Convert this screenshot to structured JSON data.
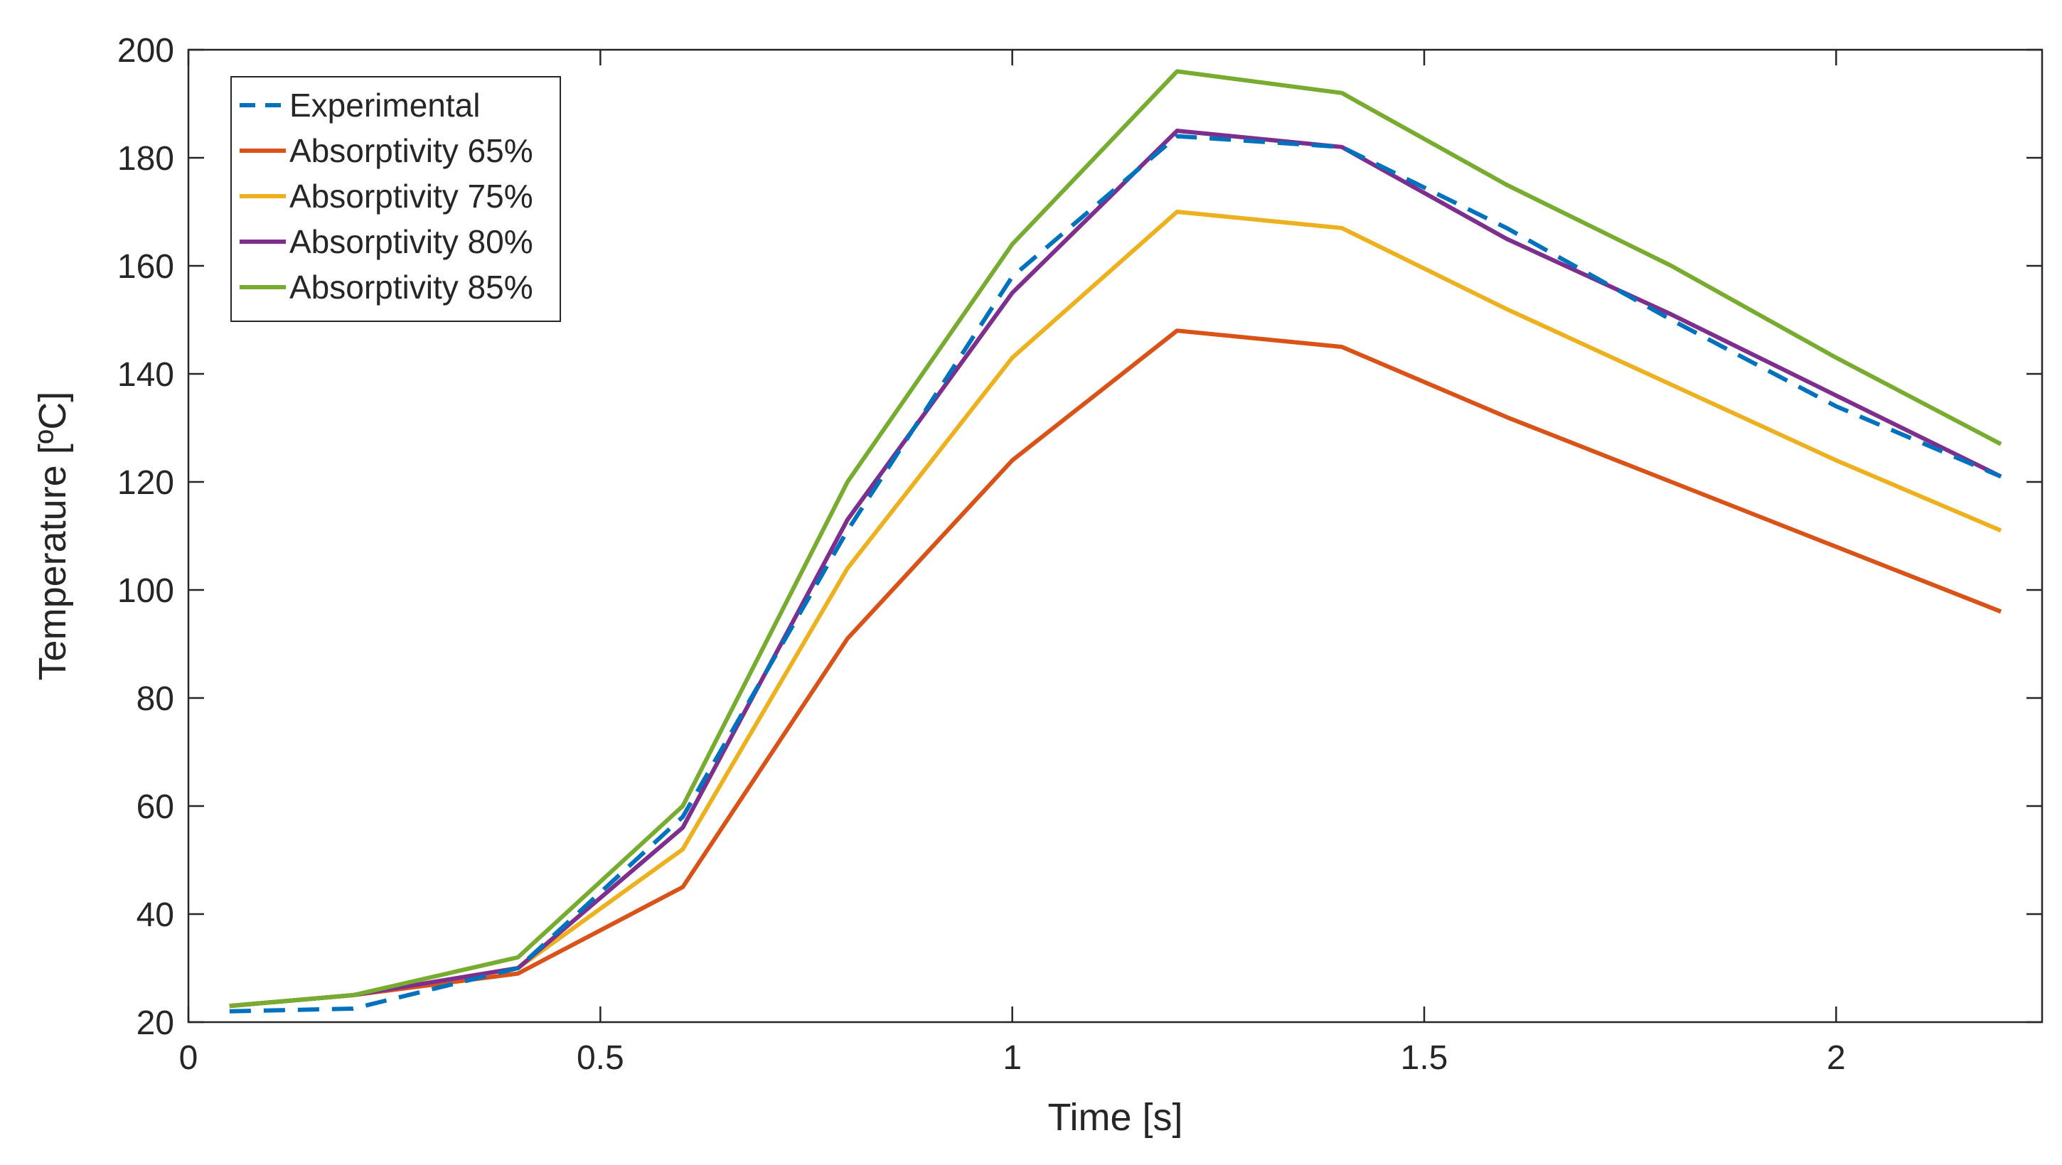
{
  "chart_data": {
    "type": "line",
    "title": "",
    "xlabel": "Time [s]",
    "ylabel": "Temperature [ºC]",
    "xlim": [
      0,
      2.25
    ],
    "ylim": [
      20,
      200
    ],
    "xticks": [
      0,
      0.5,
      1,
      1.5,
      2
    ],
    "xtick_labels": [
      "0",
      "0.5",
      "1",
      "1.5",
      "2"
    ],
    "yticks": [
      20,
      40,
      60,
      80,
      100,
      120,
      140,
      160,
      180,
      200
    ],
    "ytick_labels": [
      "20",
      "40",
      "60",
      "80",
      "100",
      "120",
      "140",
      "160",
      "180",
      "200"
    ],
    "grid": false,
    "legend_position": "top-left",
    "series": [
      {
        "name": "Experimental",
        "color": "#0072BD",
        "style": "dashed",
        "x": [
          0.05,
          0.2,
          0.4,
          0.6,
          0.8,
          1.0,
          1.2,
          1.4,
          1.6,
          1.8,
          2.0,
          2.2
        ],
        "values": [
          22,
          22.5,
          30,
          58,
          111,
          158,
          184,
          182,
          167,
          150,
          134,
          121
        ]
      },
      {
        "name": "Absorptivity 65%",
        "color": "#D95319",
        "style": "solid",
        "x": [
          0.05,
          0.2,
          0.4,
          0.6,
          0.8,
          1.0,
          1.2,
          1.4,
          1.6,
          1.8,
          2.0,
          2.2
        ],
        "values": [
          23,
          25,
          29,
          45,
          91,
          124,
          148,
          145,
          132,
          120,
          108,
          96
        ]
      },
      {
        "name": "Absorptivity 75%",
        "color": "#EDB120",
        "style": "solid",
        "x": [
          0.05,
          0.2,
          0.4,
          0.6,
          0.8,
          1.0,
          1.2,
          1.4,
          1.6,
          1.8,
          2.0,
          2.2
        ],
        "values": [
          23,
          25,
          30,
          52,
          104,
          143,
          170,
          167,
          152,
          138,
          124,
          111
        ]
      },
      {
        "name": "Absorptivity 80%",
        "color": "#7E2F8E",
        "style": "solid",
        "x": [
          0.05,
          0.2,
          0.4,
          0.6,
          0.8,
          1.0,
          1.2,
          1.4,
          1.6,
          1.8,
          2.0,
          2.2
        ],
        "values": [
          23,
          25,
          30,
          56,
          113,
          155,
          185,
          182,
          165,
          151,
          136,
          121
        ]
      },
      {
        "name": "Absorptivity 85%",
        "color": "#77AC30",
        "style": "solid",
        "x": [
          0.05,
          0.2,
          0.4,
          0.6,
          0.8,
          1.0,
          1.2,
          1.4,
          1.6,
          1.8,
          2.0,
          2.2
        ],
        "values": [
          23,
          25,
          32,
          60,
          120,
          164,
          196,
          192,
          175,
          160,
          143,
          127
        ]
      }
    ]
  }
}
